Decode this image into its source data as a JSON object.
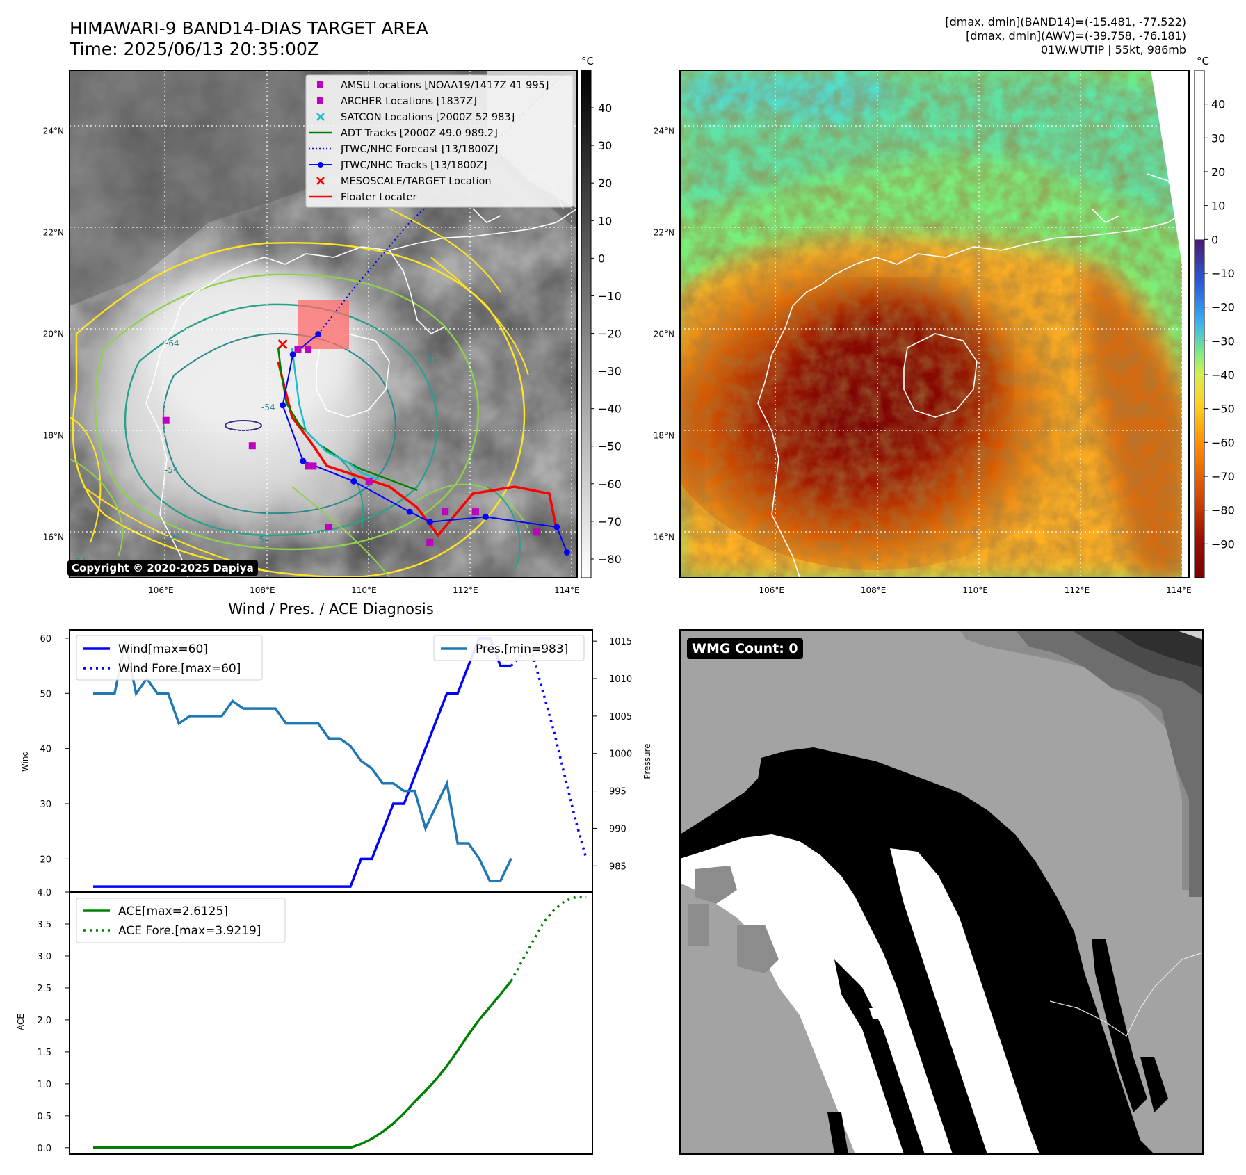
{
  "header": {
    "title_line1": "HIMAWARI-9 BAND14-DIAS TARGET AREA",
    "title_line2": "Time: 2025/06/13 20:35:00Z",
    "right_line1": "[dmax, dmin](BAND14)=(-15.481, -77.522)",
    "right_line2": "[dmax, dmin](AWV)=(-39.758, -76.181)",
    "right_line3": "01W.WUTIP | 55kt, 986mb"
  },
  "copyright": "Copyright © 2020-2025 Dapiya",
  "wmg_count": "WMG Count: 0",
  "colors": {
    "wind": "#0000ff",
    "pressure": "#1f77b4",
    "ace": "#008000",
    "track": "#0000ff",
    "adt": "#008000",
    "floater": "#ff0000",
    "amsu": "#bf00bf",
    "satcon": "#17becf"
  },
  "chart_data": [
    {
      "type": "map",
      "panel": "band14",
      "lon_ticks": [
        "106°E",
        "108°E",
        "110°E",
        "112°E",
        "114°E"
      ],
      "lat_ticks": [
        "24°N",
        "22°N",
        "20°N",
        "18°N",
        "16°N"
      ],
      "lon_range": [
        104.2,
        114.2
      ],
      "lat_range": [
        15.2,
        25.2
      ],
      "colorbar": {
        "unit": "°C",
        "ticks": [
          "40",
          "30",
          "20",
          "10",
          "0",
          "−10",
          "−20",
          "−30",
          "−40",
          "−50",
          "−60",
          "−70",
          "−80"
        ],
        "range": [
          -85,
          50
        ]
      },
      "legend": [
        {
          "label": "AMSU Locations [NOAA19/1417Z 41 995]",
          "marker": "square",
          "color": "#bf00bf"
        },
        {
          "label": "ARCHER Locations [1837Z]",
          "marker": "square",
          "color": "#bf00bf"
        },
        {
          "label": "SATCON Locations [2000Z 52 983]",
          "marker": "x",
          "color": "#17becf"
        },
        {
          "label": "ADT Tracks [2000Z 49.0 989.2]",
          "marker": "line",
          "color": "#008000"
        },
        {
          "label": "JTWC/NHC Forecast [13/1800Z]",
          "marker": "dotted",
          "color": "#0000ff"
        },
        {
          "label": "JTWC/NHC Tracks [13/1800Z]",
          "marker": "line-dot",
          "color": "#0000ff"
        },
        {
          "label": "MESOSCALE/TARGET Location",
          "marker": "x",
          "color": "#ff0000"
        },
        {
          "label": "Floater Locater",
          "marker": "line",
          "color": "#ff0000"
        }
      ],
      "contour_labels": [
        "-64",
        "-54",
        "-64",
        "-54",
        "-31",
        "-54",
        "-64"
      ],
      "jtwc_track": [
        [
          114.0,
          15.7
        ],
        [
          113.8,
          16.2
        ],
        [
          112.4,
          16.4
        ],
        [
          111.3,
          16.3
        ],
        [
          110.9,
          16.5
        ],
        [
          109.8,
          17.1
        ],
        [
          108.8,
          17.5
        ],
        [
          108.4,
          18.6
        ],
        [
          108.6,
          19.6
        ],
        [
          109.1,
          20.0
        ]
      ],
      "jtwc_forecast": [
        [
          109.1,
          20.0
        ],
        [
          109.8,
          20.9
        ],
        [
          110.9,
          22.2
        ],
        [
          112.5,
          23.7
        ],
        [
          113.9,
          25.1
        ]
      ],
      "amsu_points": [
        [
          106.1,
          18.3
        ],
        [
          107.8,
          17.8
        ],
        [
          109.3,
          16.2
        ],
        [
          110.1,
          17.1
        ],
        [
          111.3,
          15.9
        ],
        [
          111.6,
          16.5
        ],
        [
          112.2,
          16.5
        ],
        [
          113.4,
          16.1
        ]
      ],
      "archer_points": [
        [
          108.7,
          19.7
        ],
        [
          108.9,
          19.7
        ],
        [
          108.9,
          17.4
        ],
        [
          109.0,
          17.4
        ]
      ],
      "target_point": [
        108.4,
        19.8
      ]
    },
    {
      "type": "map",
      "panel": "awv",
      "lon_ticks": [
        "106°E",
        "108°E",
        "110°E",
        "112°E",
        "114°E"
      ],
      "lat_ticks": [
        "24°N",
        "22°N",
        "20°N",
        "18°N",
        "16°N"
      ],
      "lon_range": [
        104.2,
        114.2
      ],
      "lat_range": [
        15.2,
        25.2
      ],
      "colorbar": {
        "unit": "°C",
        "ticks": [
          "40",
          "30",
          "20",
          "10",
          "0",
          "−10",
          "−20",
          "−30",
          "−40",
          "−50",
          "−60",
          "−70",
          "−80",
          "−90"
        ],
        "range": [
          -100,
          50
        ]
      }
    },
    {
      "type": "line",
      "panel": "wind-pressure",
      "title": "Wind / Pres. / ACE Diagnosis",
      "ylabel": "Wind",
      "ylabel_right": "Pressure",
      "ylim": [
        14,
        61.5
      ],
      "y_ticks": [
        20,
        30,
        40,
        50,
        60
      ],
      "ylim_right": [
        981.5,
        1016.5
      ],
      "y_ticks_right": [
        985,
        990,
        995,
        1000,
        1005,
        1010,
        1015
      ],
      "series": [
        {
          "name": "Wind[max=60]",
          "axis": "left",
          "style": "solid",
          "color": "#0000ff",
          "x": [
            0,
            24,
            25,
            26,
            27,
            28,
            29,
            30,
            31,
            32,
            33,
            34,
            35,
            36,
            37,
            38,
            39
          ],
          "values": [
            15,
            15,
            20,
            20,
            25,
            30,
            30,
            35,
            40,
            45,
            50,
            50,
            55,
            60,
            60,
            55,
            55
          ]
        },
        {
          "name": "Wind Fore.[max=60]",
          "axis": "left",
          "style": "dotted",
          "color": "#0000ff",
          "x": [
            39,
            40,
            41,
            42,
            43,
            44,
            45,
            46
          ],
          "values": [
            55,
            57,
            57,
            50,
            43,
            35,
            27,
            20
          ]
        },
        {
          "name": "Pres.[min=983]",
          "axis": "right",
          "style": "solid",
          "color": "#1f77b4",
          "x": [
            0,
            2,
            3,
            4,
            5,
            6,
            7,
            8,
            9,
            10,
            11,
            12,
            13,
            14,
            15,
            16,
            17,
            18,
            19,
            20,
            21,
            22,
            23,
            24,
            25,
            26,
            27,
            28,
            29,
            30,
            31,
            32,
            33,
            34,
            35,
            36,
            37,
            38,
            39
          ],
          "values": [
            1008,
            1008,
            1015,
            1008,
            1010,
            1008,
            1008,
            1004,
            1005,
            1005,
            1005,
            1005,
            1007,
            1006,
            1006,
            1006,
            1006,
            1004,
            1004,
            1004,
            1004,
            1002,
            1002,
            1001,
            999,
            998,
            996,
            996,
            995,
            995,
            990,
            993,
            996,
            988,
            988,
            986,
            983,
            983,
            986
          ]
        }
      ]
    },
    {
      "type": "line",
      "panel": "ace",
      "ylabel": "ACE",
      "ylim": [
        -0.1,
        4.0
      ],
      "y_ticks": [
        "0.0",
        "0.5",
        "1.0",
        "1.5",
        "2.0",
        "2.5",
        "3.0",
        "3.5",
        "4.0"
      ],
      "series": [
        {
          "name": "ACE[max=2.6125]",
          "style": "solid",
          "color": "#008000",
          "x": [
            0,
            24,
            25,
            26,
            27,
            28,
            29,
            30,
            31,
            32,
            33,
            34,
            35,
            36,
            37,
            38,
            39
          ],
          "values": [
            0,
            0,
            0.06,
            0.14,
            0.25,
            0.38,
            0.54,
            0.72,
            0.89,
            1.07,
            1.28,
            1.52,
            1.77,
            2.0,
            2.2,
            2.4,
            2.61
          ]
        },
        {
          "name": "ACE Fore.[max=3.9219]",
          "style": "dotted",
          "color": "#008000",
          "x": [
            39,
            40,
            41,
            42,
            43,
            44,
            45,
            46
          ],
          "values": [
            2.61,
            2.92,
            3.22,
            3.52,
            3.72,
            3.86,
            3.92,
            3.92
          ]
        }
      ]
    },
    {
      "type": "heatmap",
      "panel": "wmg",
      "levels": [
        "#000000",
        "#ffffff",
        "#8c8c8c",
        "#a3a3a3",
        "#6e6e6e",
        "#4a4a4a",
        "#3a3a3a"
      ]
    }
  ]
}
